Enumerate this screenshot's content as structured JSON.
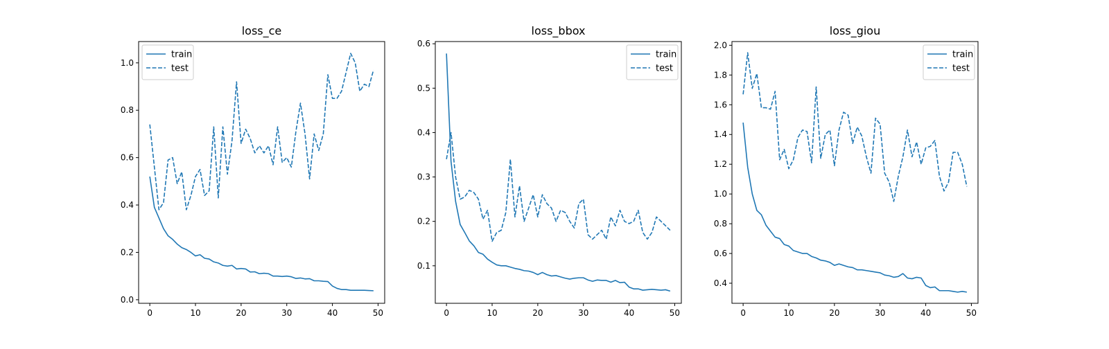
{
  "chart_data": [
    {
      "type": "line",
      "title": "loss_ce",
      "xlabel": "",
      "ylabel": "",
      "xlim": [
        -2.45,
        51.45
      ],
      "ylim": [
        -0.015,
        1.09
      ],
      "xticks": [
        0,
        10,
        20,
        30,
        40,
        50
      ],
      "yticks": [
        0.0,
        0.2,
        0.4,
        0.6,
        0.8,
        1.0
      ],
      "ytick_labels": [
        "0.0",
        "0.2",
        "0.4",
        "0.6",
        "0.8",
        "1.0"
      ],
      "grid": false,
      "legend": "top-left",
      "x": [
        0,
        1,
        2,
        3,
        4,
        5,
        6,
        7,
        8,
        9,
        10,
        11,
        12,
        13,
        14,
        15,
        16,
        17,
        18,
        19,
        20,
        21,
        22,
        23,
        24,
        25,
        26,
        27,
        28,
        29,
        30,
        31,
        32,
        33,
        34,
        35,
        36,
        37,
        38,
        39,
        40,
        41,
        42,
        43,
        44,
        45,
        46,
        47,
        48,
        49
      ],
      "series": [
        {
          "name": "train",
          "style": "solid",
          "color": "#1f77b4",
          "values": [
            0.52,
            0.39,
            0.345,
            0.3,
            0.27,
            0.255,
            0.235,
            0.22,
            0.212,
            0.2,
            0.185,
            0.19,
            0.175,
            0.172,
            0.16,
            0.155,
            0.145,
            0.142,
            0.145,
            0.13,
            0.132,
            0.13,
            0.117,
            0.118,
            0.11,
            0.112,
            0.11,
            0.1,
            0.1,
            0.098,
            0.1,
            0.097,
            0.09,
            0.092,
            0.088,
            0.089,
            0.08,
            0.08,
            0.078,
            0.077,
            0.058,
            0.048,
            0.043,
            0.043,
            0.04,
            0.04,
            0.04,
            0.04,
            0.039,
            0.038
          ]
        },
        {
          "name": "test",
          "style": "dashed",
          "color": "#1f77b4",
          "values": [
            0.74,
            0.56,
            0.38,
            0.41,
            0.59,
            0.6,
            0.49,
            0.54,
            0.38,
            0.44,
            0.52,
            0.55,
            0.44,
            0.46,
            0.73,
            0.43,
            0.73,
            0.53,
            0.67,
            0.92,
            0.66,
            0.72,
            0.68,
            0.62,
            0.65,
            0.62,
            0.65,
            0.57,
            0.73,
            0.58,
            0.6,
            0.56,
            0.71,
            0.83,
            0.7,
            0.51,
            0.7,
            0.63,
            0.7,
            0.95,
            0.85,
            0.85,
            0.88,
            0.96,
            1.04,
            1.0,
            0.88,
            0.91,
            0.9,
            0.97
          ]
        }
      ]
    },
    {
      "type": "line",
      "title": "loss_bbox",
      "xlabel": "",
      "ylabel": "",
      "xlim": [
        -2.45,
        51.45
      ],
      "ylim": [
        0.0155,
        0.605
      ],
      "xticks": [
        0,
        10,
        20,
        30,
        40,
        50
      ],
      "yticks": [
        0.1,
        0.2,
        0.3,
        0.4,
        0.5,
        0.6
      ],
      "ytick_labels": [
        "0.1",
        "0.2",
        "0.3",
        "0.4",
        "0.5",
        "0.6"
      ],
      "grid": false,
      "legend": "top-right",
      "x": [
        0,
        1,
        2,
        3,
        4,
        5,
        6,
        7,
        8,
        9,
        10,
        11,
        12,
        13,
        14,
        15,
        16,
        17,
        18,
        19,
        20,
        21,
        22,
        23,
        24,
        25,
        26,
        27,
        28,
        29,
        30,
        31,
        32,
        33,
        34,
        35,
        36,
        37,
        38,
        39,
        40,
        41,
        42,
        43,
        44,
        45,
        46,
        47,
        48,
        49
      ],
      "series": [
        {
          "name": "train",
          "style": "solid",
          "color": "#1f77b4",
          "values": [
            0.578,
            0.335,
            0.245,
            0.193,
            0.175,
            0.156,
            0.145,
            0.13,
            0.126,
            0.115,
            0.108,
            0.102,
            0.1,
            0.1,
            0.097,
            0.094,
            0.092,
            0.089,
            0.088,
            0.085,
            0.08,
            0.085,
            0.08,
            0.077,
            0.078,
            0.075,
            0.072,
            0.07,
            0.072,
            0.073,
            0.073,
            0.068,
            0.065,
            0.068,
            0.067,
            0.067,
            0.063,
            0.067,
            0.062,
            0.063,
            0.052,
            0.048,
            0.048,
            0.045,
            0.046,
            0.047,
            0.046,
            0.045,
            0.046,
            0.043
          ]
        },
        {
          "name": "test",
          "style": "dashed",
          "color": "#1f77b4",
          "values": [
            0.34,
            0.4,
            0.3,
            0.25,
            0.255,
            0.27,
            0.265,
            0.25,
            0.205,
            0.225,
            0.155,
            0.175,
            0.18,
            0.22,
            0.34,
            0.21,
            0.28,
            0.2,
            0.23,
            0.26,
            0.21,
            0.26,
            0.24,
            0.23,
            0.2,
            0.225,
            0.22,
            0.2,
            0.185,
            0.24,
            0.25,
            0.17,
            0.16,
            0.17,
            0.18,
            0.16,
            0.21,
            0.19,
            0.225,
            0.2,
            0.195,
            0.2,
            0.225,
            0.175,
            0.16,
            0.175,
            0.21,
            0.2,
            0.19,
            0.18
          ]
        }
      ]
    },
    {
      "type": "line",
      "title": "loss_giou",
      "xlabel": "",
      "ylabel": "",
      "xlim": [
        -2.45,
        51.45
      ],
      "ylim": [
        0.265,
        2.025
      ],
      "xticks": [
        0,
        10,
        20,
        30,
        40,
        50
      ],
      "yticks": [
        0.4,
        0.6,
        0.8,
        1.0,
        1.2,
        1.4,
        1.6,
        1.8,
        2.0
      ],
      "ytick_labels": [
        "0.4",
        "0.6",
        "0.8",
        "1.0",
        "1.2",
        "1.4",
        "1.6",
        "1.8",
        "2.0"
      ],
      "grid": false,
      "legend": "top-right",
      "x": [
        0,
        1,
        2,
        3,
        4,
        5,
        6,
        7,
        8,
        9,
        10,
        11,
        12,
        13,
        14,
        15,
        16,
        17,
        18,
        19,
        20,
        21,
        22,
        23,
        24,
        25,
        26,
        27,
        28,
        29,
        30,
        31,
        32,
        33,
        34,
        35,
        36,
        37,
        38,
        39,
        40,
        41,
        42,
        43,
        44,
        45,
        46,
        47,
        48,
        49
      ],
      "series": [
        {
          "name": "train",
          "style": "solid",
          "color": "#1f77b4",
          "values": [
            1.48,
            1.18,
            1.0,
            0.89,
            0.86,
            0.79,
            0.75,
            0.71,
            0.7,
            0.66,
            0.65,
            0.62,
            0.61,
            0.6,
            0.6,
            0.58,
            0.57,
            0.555,
            0.55,
            0.54,
            0.52,
            0.53,
            0.52,
            0.51,
            0.505,
            0.49,
            0.49,
            0.485,
            0.48,
            0.475,
            0.47,
            0.455,
            0.45,
            0.44,
            0.445,
            0.465,
            0.435,
            0.43,
            0.44,
            0.435,
            0.385,
            0.37,
            0.375,
            0.35,
            0.35,
            0.35,
            0.345,
            0.34,
            0.345,
            0.34
          ]
        },
        {
          "name": "test",
          "style": "dashed",
          "color": "#1f77b4",
          "values": [
            1.67,
            1.95,
            1.71,
            1.81,
            1.58,
            1.58,
            1.57,
            1.69,
            1.23,
            1.3,
            1.17,
            1.23,
            1.38,
            1.43,
            1.42,
            1.21,
            1.72,
            1.24,
            1.4,
            1.43,
            1.19,
            1.43,
            1.55,
            1.53,
            1.34,
            1.45,
            1.39,
            1.25,
            1.14,
            1.51,
            1.47,
            1.14,
            1.08,
            0.95,
            1.12,
            1.25,
            1.43,
            1.25,
            1.35,
            1.2,
            1.31,
            1.32,
            1.36,
            1.12,
            1.02,
            1.08,
            1.28,
            1.28,
            1.2,
            1.05
          ]
        }
      ]
    }
  ]
}
